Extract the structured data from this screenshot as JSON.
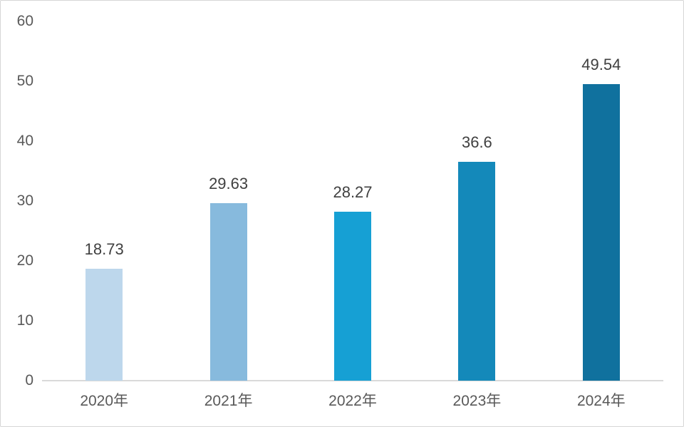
{
  "chart_data": {
    "type": "bar",
    "title": "",
    "categories": [
      "2020年",
      "2021年",
      "2022年",
      "2023年",
      "2024年"
    ],
    "values": [
      18.73,
      29.63,
      28.27,
      36.6,
      49.54
    ],
    "value_labels": [
      "18.73",
      "29.63",
      "28.27",
      "36.6",
      "49.54"
    ],
    "bar_colors": [
      "#BDD7EC",
      "#87BADD",
      "#16A0D4",
      "#1489BA",
      "#10719E"
    ],
    "ylim": [
      0,
      60
    ],
    "yticks": [
      0,
      10,
      20,
      30,
      40,
      50,
      60
    ],
    "grid": false,
    "legend_position": "none",
    "xlabel": "",
    "ylabel": "",
    "axis_line_color": "#D9D9D9",
    "tick_label_color": "#595959",
    "category_label_color": "#595959",
    "data_label_color": "#404040",
    "background_color": "#FFFFFF",
    "border_color": "#D6D6D6"
  }
}
